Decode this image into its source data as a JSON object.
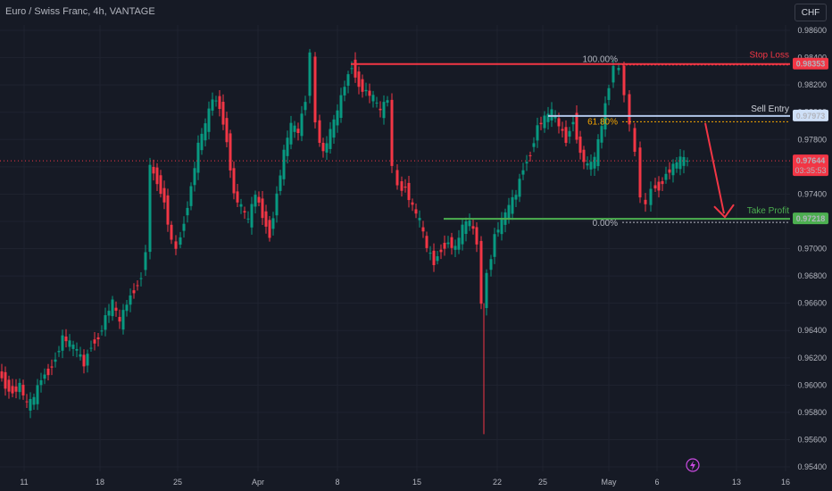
{
  "header": {
    "title": "Euro / Swiss Franc, 4h, VANTAGE",
    "currency_button": "CHF"
  },
  "chart_data": {
    "type": "candlestick",
    "y_axis": {
      "range": [
        0.9536,
        0.9872
      ],
      "ticks": [
        "0.98600",
        "0.98400",
        "0.98200",
        "0.98000",
        "0.97800",
        "0.97600",
        "0.97400",
        "0.97200",
        "0.97000",
        "0.96800",
        "0.96600",
        "0.96400",
        "0.96200",
        "0.96000",
        "0.95800",
        "0.95600",
        "0.95400"
      ]
    },
    "x_axis": {
      "ticks": [
        "11",
        "18",
        "25",
        "Apr",
        "8",
        "15",
        "22",
        "25",
        "May",
        "6",
        "13",
        "16"
      ]
    },
    "levels": [
      {
        "name": "stop_loss",
        "label": "Stop Loss",
        "value": "0.98353",
        "fib": "100.00%",
        "color": "#f23645"
      },
      {
        "name": "sell_entry",
        "label": "Sell Entry",
        "value": "0.97973",
        "fib": "",
        "color": "#b2c7ea"
      },
      {
        "name": "fib_618",
        "label": "",
        "value": "",
        "fib": "61.80%",
        "color": "#f7a600"
      },
      {
        "name": "take_profit",
        "label": "Take Profit",
        "value": "0.97218",
        "fib": "0.00%",
        "color": "#4caf50"
      }
    ],
    "current_price": {
      "value": "0.97644",
      "countdown": "03:35:53",
      "color": "#f23645"
    },
    "candles_down_color": "#f23645",
    "candles_up_color": "#089981"
  }
}
